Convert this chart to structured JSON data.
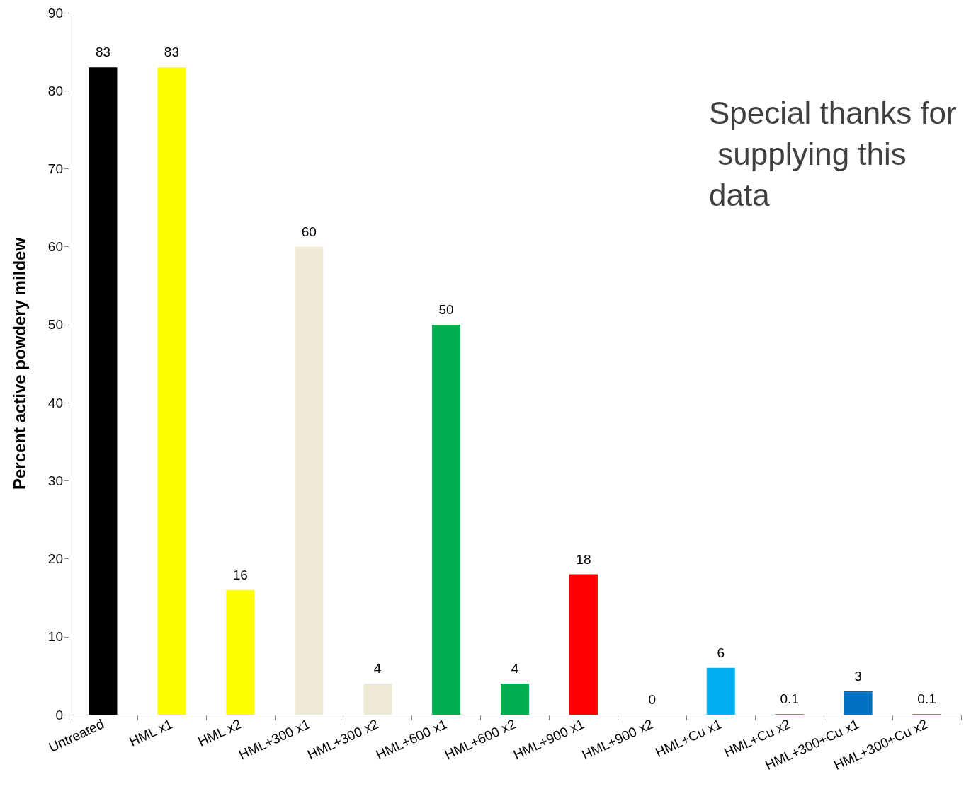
{
  "chart_data": {
    "type": "bar",
    "ylabel": "Percent active powdery mildew",
    "categories": [
      "Untreated",
      "HML x1",
      "HML x2",
      "HML+300 x1",
      "HML+300 x2",
      "HML+600 x1",
      "HML+600 x2",
      "HML+900 x1",
      "HML+900 x2",
      "HML+Cu x1",
      "HML+Cu x2",
      "HML+300+Cu x1",
      "HML+300+Cu x2"
    ],
    "values": [
      83,
      83,
      16,
      60,
      4,
      50,
      4,
      18,
      0,
      6,
      0.1,
      3,
      0.1
    ],
    "colors": [
      "#000000",
      "#ffff00",
      "#ffff00",
      "#eeead6",
      "#eeead6",
      "#00b050",
      "#00b050",
      "#ff0000",
      "#00b0f0",
      "#00b0f0",
      "#00b0f0",
      "#0070c0",
      "#00b0f0"
    ],
    "ylim": [
      0,
      90
    ],
    "yticks": [
      0,
      10,
      20,
      30,
      40,
      50,
      60,
      70,
      80,
      90
    ],
    "data_labels": true,
    "grid": false,
    "annotations": [
      "Special thanks for supplying this data"
    ]
  }
}
